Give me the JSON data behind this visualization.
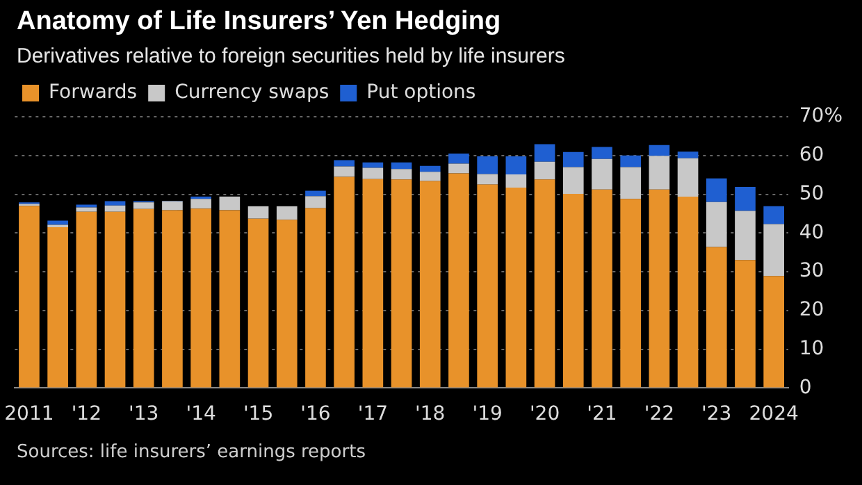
{
  "chart_data": {
    "type": "bar",
    "stacked": true,
    "title": "Anatomy of Life Insurers’ Yen Hedging",
    "subtitle": "Derivatives relative to foreign securities held by life insurers",
    "categories": [
      "2011",
      null,
      "'12",
      null,
      "'13",
      null,
      "'14",
      null,
      "'15",
      null,
      "'16",
      null,
      "'17",
      null,
      "'18",
      null,
      "'19",
      null,
      "'20",
      null,
      "'21",
      null,
      "'22",
      null,
      "'23",
      null,
      "2024"
    ],
    "series": [
      {
        "name": "Forwards",
        "color": "#e8922a",
        "values": [
          47.0,
          41.5,
          45.5,
          45.5,
          46.2,
          45.9,
          46.3,
          45.9,
          43.7,
          43.4,
          46.4,
          54.5,
          53.9,
          53.8,
          53.4,
          55.4,
          52.5,
          51.7,
          53.8,
          50.1,
          51.2,
          48.8,
          51.2,
          49.4,
          36.4,
          33.0,
          28.9
        ]
      },
      {
        "name": "Currency swaps",
        "color": "#c8c8c8",
        "values": [
          0.5,
          0.6,
          1.1,
          1.6,
          1.7,
          2.3,
          2.5,
          3.5,
          3.2,
          3.5,
          3.1,
          2.7,
          2.9,
          2.7,
          2.4,
          2.5,
          2.7,
          3.4,
          4.6,
          6.9,
          7.9,
          8.2,
          8.7,
          9.9,
          11.6,
          12.7,
          13.4
        ]
      },
      {
        "name": "Put options",
        "color": "#1f5fd1",
        "values": [
          0.4,
          1.1,
          0.7,
          1.1,
          0.3,
          0.1,
          0.6,
          0,
          0,
          0,
          1.4,
          1.6,
          1.4,
          1.7,
          1.5,
          2.6,
          4.6,
          4.7,
          4.5,
          3.9,
          3.1,
          3.0,
          2.8,
          1.7,
          6.1,
          6.2,
          4.6
        ]
      }
    ],
    "ylim": [
      0,
      70
    ],
    "yticks": [
      0,
      10,
      20,
      30,
      40,
      50,
      60,
      {
        "value": 70,
        "label": "70%"
      }
    ],
    "grid": "y",
    "legend": "top left",
    "annotations": [
      "Sources: life insurers’ earnings reports"
    ]
  }
}
